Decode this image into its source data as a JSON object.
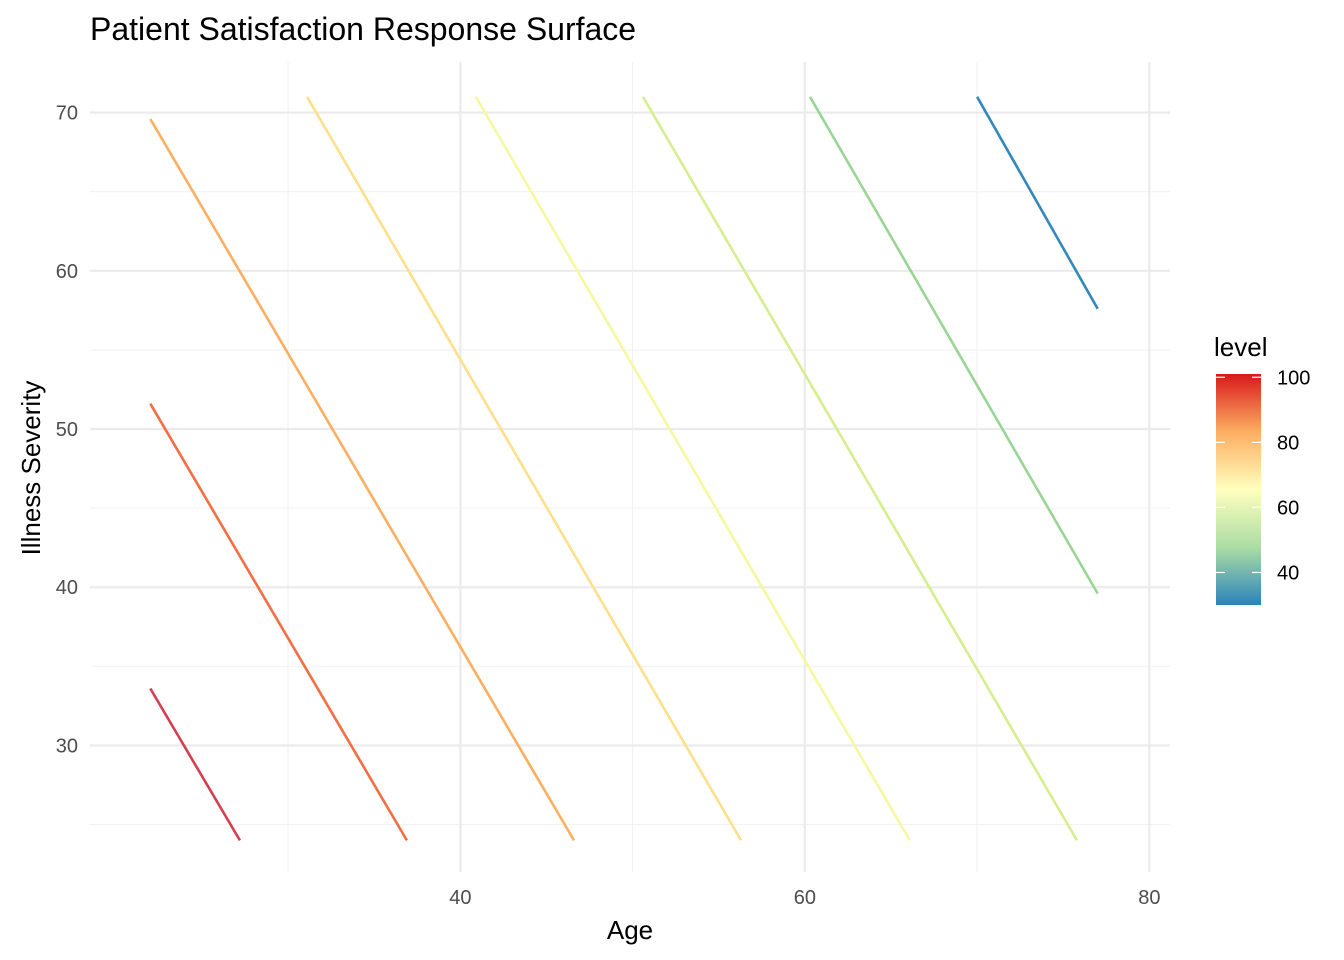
{
  "chart_data": {
    "type": "line",
    "title": "Patient Satisfaction Response Surface",
    "xlabel": "Age",
    "ylabel": "Illness Severity",
    "xlim": [
      18.5,
      81.2
    ],
    "ylim": [
      22,
      73.2
    ],
    "x_ticks": [
      40,
      60,
      80
    ],
    "x_minor_ticks": [
      30,
      50,
      70
    ],
    "y_ticks": [
      30,
      40,
      50,
      60,
      70
    ],
    "y_minor_ticks": [
      25,
      35,
      45,
      55,
      65
    ],
    "grid": true,
    "legend": {
      "title": "level",
      "placement": "right",
      "type": "colorbar",
      "range": [
        30,
        101
      ],
      "ticks": [
        40,
        60,
        80,
        100
      ],
      "colors": [
        "#2b83ba",
        "#abdda4",
        "#ffffbf",
        "#fdae61",
        "#d7191c"
      ]
    },
    "series": [
      {
        "level": 100,
        "color": "#d53e4f",
        "points": [
          [
            22.0,
            33.6
          ],
          [
            27.2,
            24.0
          ]
        ]
      },
      {
        "level": 90,
        "color": "#f46d43",
        "points": [
          [
            22.0,
            51.6
          ],
          [
            36.9,
            24.0
          ]
        ]
      },
      {
        "level": 80,
        "color": "#fdae61",
        "points": [
          [
            22.0,
            69.6
          ],
          [
            46.6,
            24.0
          ]
        ]
      },
      {
        "level": 70,
        "color": "#fee08b",
        "points": [
          [
            31.1,
            71.0
          ],
          [
            56.3,
            24.0
          ]
        ]
      },
      {
        "level": 60,
        "color": "#f6f8a0",
        "points": [
          [
            40.9,
            71.0
          ],
          [
            66.1,
            24.0
          ]
        ]
      },
      {
        "level": 50,
        "color": "#d5ee90",
        "points": [
          [
            50.6,
            71.0
          ],
          [
            75.8,
            24.0
          ]
        ]
      },
      {
        "level": 40,
        "color": "#99d594",
        "points": [
          [
            60.3,
            71.0
          ],
          [
            77.0,
            39.6
          ]
        ]
      },
      {
        "level": 30,
        "color": "#3288bd",
        "points": [
          [
            70.0,
            71.0
          ],
          [
            77.0,
            57.6
          ]
        ]
      }
    ]
  }
}
